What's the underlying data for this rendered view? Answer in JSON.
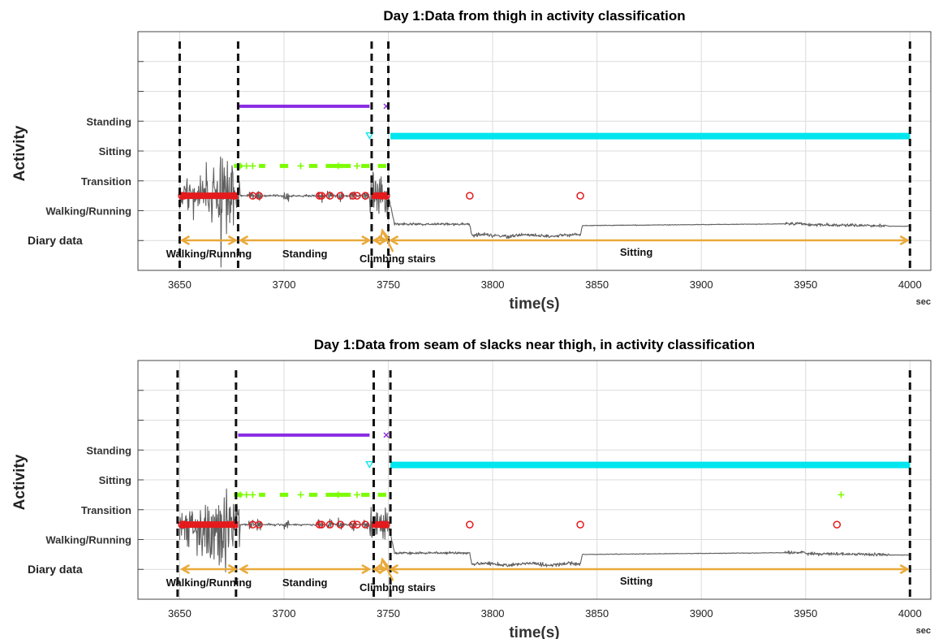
{
  "chart_data": [
    {
      "type": "scatter",
      "title": "Day 1:Data from thigh in activity classification",
      "xlabel": "time(s)",
      "ylabel": "Activity",
      "x_unit": "sec",
      "xlim": [
        3630,
        4010
      ],
      "xticks": [
        3650,
        3700,
        3750,
        3800,
        3850,
        3900,
        3950,
        4000
      ],
      "grid": true,
      "categories": [
        "Diary data",
        "",
        "Walking/Running",
        "Transition",
        "Sitting",
        "Standing",
        ""
      ],
      "series": [
        {
          "name": "Walking/Running",
          "color": "#e41a1c",
          "marker": "circle",
          "segments": [
            [
              3650,
              3678
            ],
            [
              3742,
              3750
            ]
          ],
          "points": [
            3651,
            3652,
            3676,
            3685,
            3688,
            3717,
            3718,
            3722,
            3727,
            3733,
            3735,
            3739,
            3747,
            3749,
            3789,
            3842
          ]
        },
        {
          "name": "Transition",
          "color": "#7cfc00",
          "marker": "plus",
          "segments": [
            [
              3676,
              3680
            ],
            [
              3688,
              3691
            ],
            [
              3698,
              3702
            ],
            [
              3712,
              3716
            ],
            [
              3720,
              3732
            ],
            [
              3737,
              3741
            ],
            [
              3745,
              3749
            ]
          ],
          "points": [
            3679,
            3682,
            3685,
            3708,
            3726,
            3735
          ]
        },
        {
          "name": "Sitting",
          "color": "#00e5ee",
          "marker": "triangle-down",
          "segments": [
            [
              3751,
              4000
            ]
          ],
          "points": [
            3741
          ]
        },
        {
          "name": "Standing",
          "color": "#8a2be2",
          "marker": "x",
          "segments": [
            [
              3678,
              3741
            ]
          ],
          "points": [
            3749
          ]
        }
      ],
      "diary": [
        {
          "label": "Walking/Running",
          "start": 3650,
          "end": 3678
        },
        {
          "label": "Standing",
          "start": 3678,
          "end": 3742
        },
        {
          "label": "Climbing stairs",
          "start": 3742,
          "end": 3750
        },
        {
          "label": "Sitting",
          "start": 3750,
          "end": 4000
        }
      ],
      "boundaries": [
        3650,
        3678,
        3742,
        3750,
        4000
      ]
    },
    {
      "type": "scatter",
      "title": "Day 1:Data from seam of slacks near thigh, in activity classification",
      "xlabel": "time(s)",
      "ylabel": "Activity",
      "x_unit": "sec",
      "xlim": [
        3630,
        4010
      ],
      "xticks": [
        3650,
        3700,
        3750,
        3800,
        3850,
        3900,
        3950,
        4000
      ],
      "grid": true,
      "categories": [
        "Diary data",
        "",
        "Walking/Running",
        "Transition",
        "Sitting",
        "Standing",
        ""
      ],
      "series": [
        {
          "name": "Walking/Running",
          "color": "#e41a1c",
          "marker": "circle",
          "segments": [
            [
              3650,
              3678
            ],
            [
              3742,
              3750
            ]
          ],
          "points": [
            3651,
            3652,
            3676,
            3685,
            3688,
            3717,
            3718,
            3722,
            3727,
            3733,
            3735,
            3739,
            3747,
            3749,
            3789,
            3842,
            3965
          ]
        },
        {
          "name": "Transition",
          "color": "#7cfc00",
          "marker": "plus",
          "segments": [
            [
              3676,
              3680
            ],
            [
              3688,
              3691
            ],
            [
              3698,
              3702
            ],
            [
              3712,
              3716
            ],
            [
              3720,
              3732
            ],
            [
              3737,
              3741
            ],
            [
              3745,
              3749
            ]
          ],
          "points": [
            3679,
            3682,
            3685,
            3708,
            3726,
            3735,
            3967
          ]
        },
        {
          "name": "Sitting",
          "color": "#00e5ee",
          "marker": "triangle-down",
          "segments": [
            [
              3751,
              4000
            ]
          ],
          "points": [
            3741
          ]
        },
        {
          "name": "Standing",
          "color": "#8a2be2",
          "marker": "x",
          "segments": [
            [
              3678,
              3741
            ]
          ],
          "points": [
            3749
          ]
        }
      ],
      "diary": [
        {
          "label": "Walking/Running",
          "start": 3650,
          "end": 3678
        },
        {
          "label": "Standing",
          "start": 3678,
          "end": 3742
        },
        {
          "label": "Climbing stairs",
          "start": 3742,
          "end": 3750
        },
        {
          "label": "Sitting",
          "start": 3750,
          "end": 4000
        }
      ],
      "boundaries": [
        3649,
        3677,
        3743,
        3751,
        4000
      ]
    }
  ],
  "colors": {
    "signal": "#5f5f5f",
    "boundary": "#111111",
    "diary_arrow": "#e9a93a",
    "grid": "#dcdcdc",
    "axes": "#444444"
  }
}
